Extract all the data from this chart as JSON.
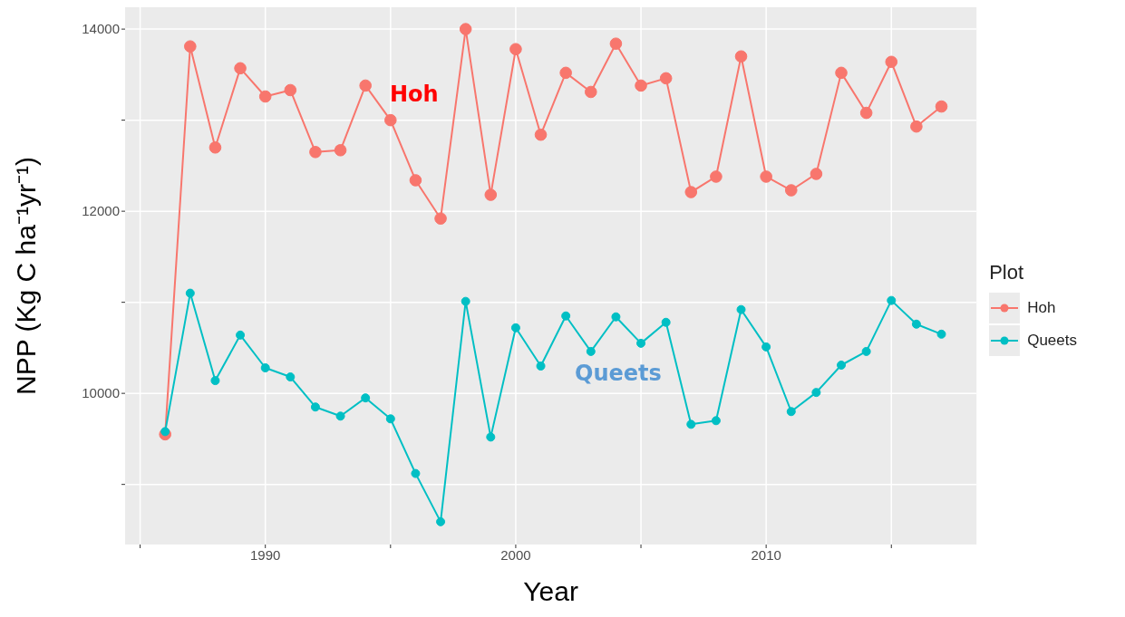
{
  "chart_data": {
    "type": "line",
    "xlabel": "Year",
    "ylabel": "NPP (Kg C ha⁻¹yr⁻¹)",
    "legend_title": "Plot",
    "x": [
      1986,
      1987,
      1988,
      1989,
      1990,
      1991,
      1992,
      1993,
      1994,
      1995,
      1996,
      1997,
      1998,
      1999,
      2000,
      2001,
      2002,
      2003,
      2004,
      2005,
      2006,
      2007,
      2008,
      2009,
      2010,
      2011,
      2012,
      2013,
      2014,
      2015,
      2016,
      2017
    ],
    "series": [
      {
        "name": "Hoh",
        "color": "#f8766d",
        "values": [
          9550,
          13810,
          12700,
          13570,
          13260,
          13330,
          12650,
          12670,
          13380,
          13000,
          12340,
          11920,
          14000,
          12180,
          13780,
          12840,
          13520,
          13310,
          13840,
          13380,
          13460,
          12210,
          12380,
          13700,
          12380,
          12230,
          12410,
          13520,
          13080,
          13640,
          12930,
          13150
        ]
      },
      {
        "name": "Queets",
        "color": "#00bfc4",
        "values": [
          9580,
          11100,
          10140,
          10640,
          10280,
          10180,
          9850,
          9750,
          9950,
          9720,
          9120,
          8590,
          11010,
          9520,
          10720,
          10300,
          10850,
          10460,
          10840,
          10550,
          10780,
          9660,
          9700,
          10920,
          10510,
          9800,
          10010,
          10310,
          10460,
          11020,
          10760,
          10650
        ]
      }
    ],
    "xlim": [
      1984.4,
      2018.4
    ],
    "xticks": [
      {
        "value": 1985,
        "label": null
      },
      1990,
      {
        "value": 1995,
        "label": null
      },
      2000,
      {
        "value": 2005,
        "label": null
      },
      2010,
      {
        "value": 2015,
        "label": null
      }
    ],
    "ylim": [
      8340,
      14240
    ],
    "yticks": [
      {
        "value": 9000,
        "label": null
      },
      10000,
      {
        "value": 11000,
        "label": null
      },
      12000,
      {
        "value": 13000,
        "label": null
      },
      14000
    ],
    "annotations": [
      "Hoh",
      "Queets"
    ],
    "grid": true,
    "legend": "right",
    "marker": "circle",
    "line_style": "solid"
  }
}
